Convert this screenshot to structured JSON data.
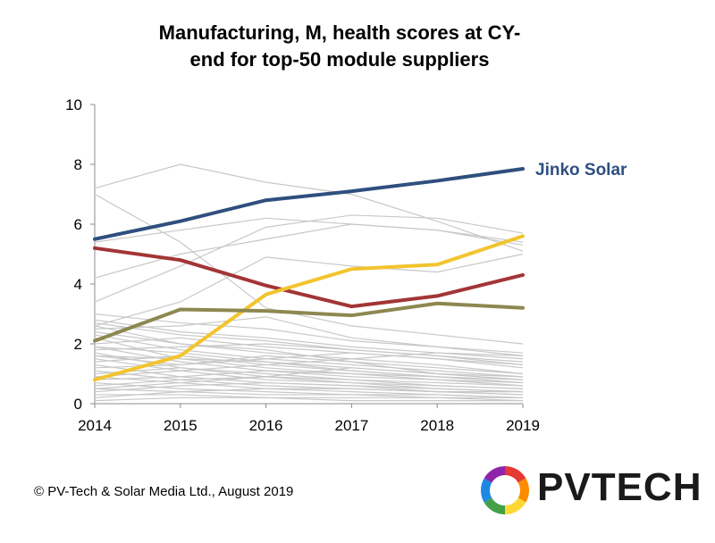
{
  "chart_data": {
    "type": "line",
    "title_line1": "Manufacturing, M, health scores at CY-",
    "title_line2": "end for top-50 module suppliers",
    "xlabel": "",
    "ylabel": "",
    "x": [
      "2014",
      "2015",
      "2016",
      "2017",
      "2018",
      "2019"
    ],
    "ylim": [
      0,
      10
    ],
    "yticks": [
      "0",
      "2",
      "4",
      "6",
      "8",
      "10"
    ],
    "grid": false,
    "colors": {
      "jinko": "#2f4f7f",
      "red": "#a33535",
      "yellow": "#f2c42e",
      "olive": "#8c8850",
      "gray": "#c8c8c8"
    },
    "highlighted_series": [
      {
        "key": "jinko",
        "label": "Jinko Solar",
        "values": [
          5.5,
          6.1,
          6.8,
          7.1,
          7.45,
          7.85
        ]
      },
      {
        "key": "red",
        "label": "",
        "values": [
          5.2,
          4.8,
          3.95,
          3.25,
          3.6,
          4.3
        ]
      },
      {
        "key": "yellow",
        "label": "",
        "values": [
          0.8,
          1.6,
          3.65,
          4.5,
          4.65,
          5.6
        ]
      },
      {
        "key": "olive",
        "label": "",
        "values": [
          2.1,
          3.15,
          3.1,
          2.95,
          3.35,
          3.2
        ]
      }
    ],
    "background_series": [
      [
        7.2,
        8.0,
        7.4,
        7.0,
        6.1,
        5.1
      ],
      [
        7.0,
        5.4,
        3.2,
        2.6,
        2.3,
        2.0
      ],
      [
        5.4,
        5.8,
        6.2,
        6.0,
        5.8,
        5.3
      ],
      [
        4.2,
        5.0,
        5.5,
        6.0,
        5.8,
        5.4
      ],
      [
        3.4,
        4.6,
        5.9,
        6.3,
        6.2,
        5.7
      ],
      [
        2.6,
        3.4,
        4.9,
        4.6,
        4.4,
        5.0
      ],
      [
        2.7,
        2.3,
        2.1,
        1.8,
        1.6,
        1.3
      ],
      [
        2.6,
        2.0,
        1.7,
        1.5,
        1.3,
        1.0
      ],
      [
        2.5,
        2.6,
        2.9,
        2.2,
        1.9,
        1.6
      ],
      [
        2.3,
        1.8,
        1.5,
        1.3,
        1.1,
        0.9
      ],
      [
        2.2,
        1.5,
        1.2,
        1.0,
        0.9,
        0.7
      ],
      [
        2.0,
        2.2,
        1.9,
        1.7,
        1.5,
        1.2
      ],
      [
        1.9,
        1.4,
        1.1,
        0.9,
        0.8,
        0.6
      ],
      [
        1.8,
        1.9,
        2.0,
        1.8,
        1.6,
        1.4
      ],
      [
        1.7,
        1.2,
        0.9,
        0.8,
        0.6,
        0.5
      ],
      [
        1.6,
        1.5,
        1.4,
        1.2,
        1.0,
        0.8
      ],
      [
        1.5,
        1.1,
        0.8,
        0.7,
        0.5,
        0.4
      ],
      [
        1.4,
        1.6,
        1.3,
        1.1,
        0.9,
        0.7
      ],
      [
        1.3,
        0.9,
        0.7,
        0.6,
        0.4,
        0.3
      ],
      [
        1.2,
        1.3,
        1.6,
        1.4,
        1.2,
        1.0
      ],
      [
        1.1,
        0.8,
        0.6,
        0.5,
        0.4,
        0.3
      ],
      [
        1.0,
        1.2,
        1.0,
        0.8,
        0.7,
        0.6
      ],
      [
        0.9,
        0.7,
        0.5,
        0.4,
        0.3,
        0.2
      ],
      [
        0.8,
        0.9,
        1.1,
        1.0,
        0.8,
        0.7
      ],
      [
        0.7,
        0.5,
        0.4,
        0.3,
        0.3,
        0.2
      ],
      [
        0.6,
        0.8,
        0.9,
        0.7,
        0.6,
        0.5
      ],
      [
        0.5,
        0.4,
        0.3,
        0.3,
        0.2,
        0.2
      ],
      [
        0.4,
        0.6,
        0.7,
        0.6,
        0.5,
        0.4
      ],
      [
        0.3,
        0.3,
        0.2,
        0.2,
        0.2,
        0.1
      ],
      [
        0.2,
        0.4,
        0.5,
        0.5,
        0.4,
        0.4
      ],
      [
        0.1,
        0.2,
        0.2,
        0.1,
        0.1,
        0.1
      ],
      [
        2.8,
        2.4,
        2.2,
        1.9,
        1.7,
        1.5
      ],
      [
        3.0,
        2.7,
        2.5,
        2.1,
        1.9,
        1.7
      ],
      [
        1.6,
        1.3,
        1.5,
        1.7,
        1.5,
        1.3
      ],
      [
        0.9,
        1.1,
        1.3,
        1.5,
        1.7,
        1.6
      ],
      [
        0.5,
        0.7,
        0.9,
        1.2,
        1.0,
        0.9
      ],
      [
        2.4,
        2.0,
        1.8,
        1.4,
        1.0,
        0.8
      ],
      [
        1.9,
        1.7,
        1.4,
        1.1,
        0.9,
        0.8
      ]
    ]
  },
  "footer": {
    "copyright": "© PV-Tech & Solar Media Ltd., August 2019",
    "logo_text": "PVTECH",
    "logo_icon": "pvtech-ring-logo"
  }
}
